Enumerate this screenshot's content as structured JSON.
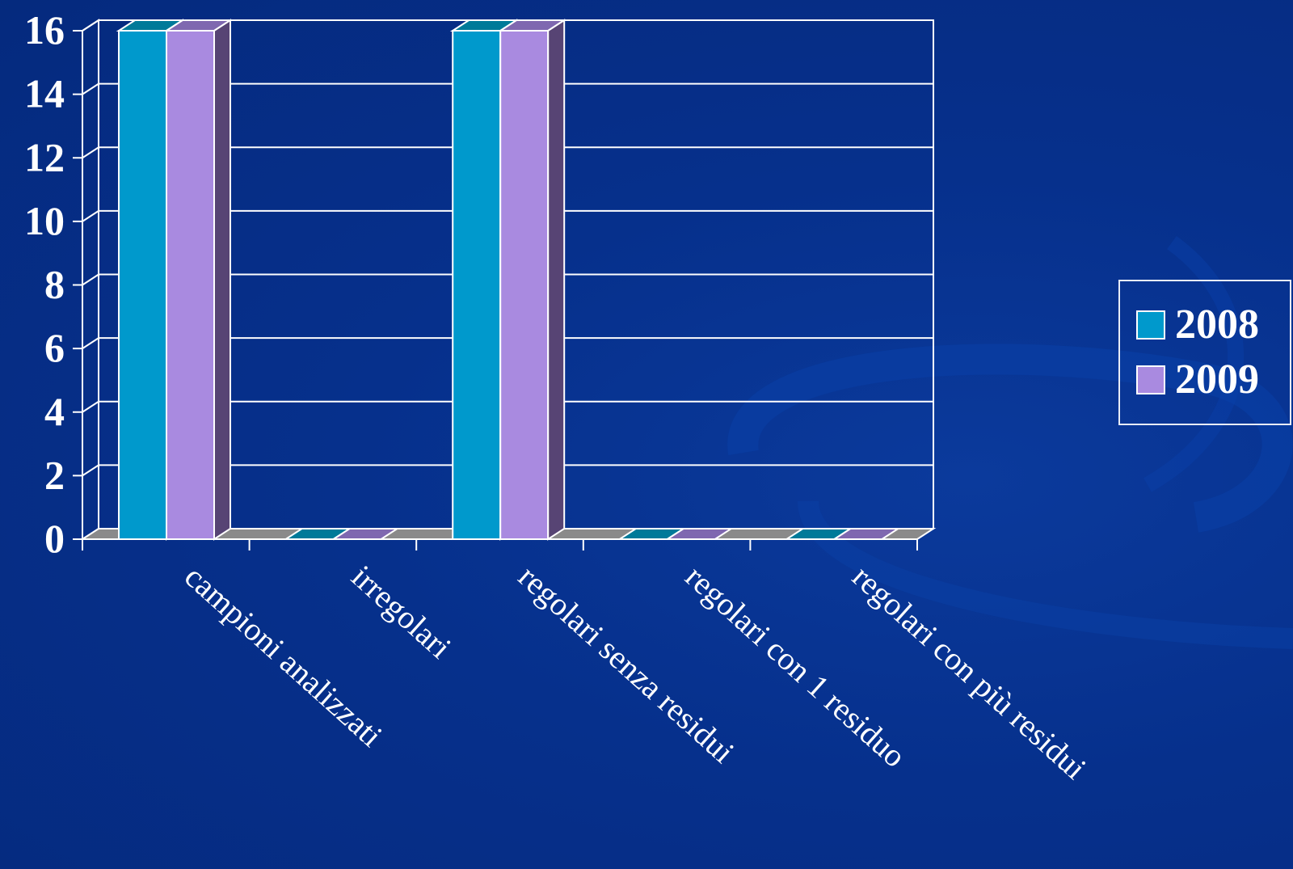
{
  "chart_data": {
    "type": "bar",
    "categories": [
      "campioni analizzati",
      "irregolari",
      "regolari senza residui",
      "regolari con 1 residuo",
      "regolari con più residui"
    ],
    "series": [
      {
        "name": "2008",
        "values": [
          16,
          0,
          16,
          0,
          0
        ]
      },
      {
        "name": "2009",
        "values": [
          16,
          0,
          16,
          0,
          0
        ]
      }
    ],
    "ylim": [
      0,
      16
    ],
    "yticks": [
      "0",
      "2",
      "4",
      "6",
      "8",
      "10",
      "12",
      "14",
      "16"
    ],
    "legend_position": "right",
    "grid": true,
    "style": "3d-clustered-column"
  },
  "colors": {
    "series_2008": "#0099cc",
    "series_2009": "#a98ae0",
    "background": "#06308c",
    "axis": "#ffffff"
  }
}
